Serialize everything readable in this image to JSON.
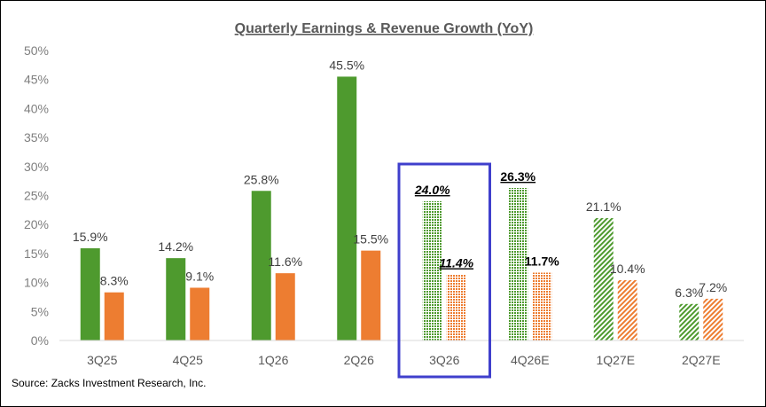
{
  "colors": {
    "earnings": "#4e9a2e",
    "revenue": "#ed7d31",
    "highlight_box": "#3f3fcc",
    "axis": "#d9d9d9"
  },
  "source": "Source: Zacks Investment Research, Inc.",
  "chart_data": {
    "type": "bar",
    "title": "Quarterly Earnings & Revenue Growth (YoY)",
    "categories": [
      "3Q25",
      "4Q25",
      "1Q26",
      "2Q26",
      "3Q26",
      "4Q26E",
      "1Q27E",
      "2Q27E"
    ],
    "series": [
      {
        "values": [
          15.9,
          14.2,
          25.8,
          45.5,
          24.0,
          26.3,
          21.1,
          6.3
        ],
        "labels": [
          "15.9%",
          "14.2%",
          "25.8%",
          "45.5%",
          "24.0%",
          "26.3%",
          "21.1%",
          "6.3%"
        ],
        "fill": [
          "solid",
          "solid",
          "solid",
          "solid",
          "dotted",
          "dotted",
          "hatched",
          "hatched"
        ],
        "label_style": [
          "normal",
          "normal",
          "normal",
          "normal",
          "bold-italic-underline",
          "bold-underline",
          "normal",
          "normal"
        ]
      },
      {
        "values": [
          8.3,
          9.1,
          11.6,
          15.5,
          11.4,
          11.7,
          10.4,
          7.2
        ],
        "labels": [
          "8.3%",
          "9.1%",
          "11.6%",
          "15.5%",
          "11.4%",
          "11.7%",
          "10.4%",
          "7.2%"
        ],
        "fill": [
          "solid",
          "solid",
          "solid",
          "solid",
          "dotted",
          "dotted",
          "hatched",
          "hatched"
        ],
        "label_style": [
          "normal",
          "normal",
          "normal",
          "normal",
          "bold-italic-underline",
          "bold",
          "normal",
          "normal"
        ]
      }
    ],
    "yticks": [
      "0%",
      "5%",
      "10%",
      "15%",
      "20%",
      "25%",
      "30%",
      "35%",
      "40%",
      "45%",
      "50%"
    ],
    "ylim": [
      0,
      50
    ],
    "highlighted_category": "3Q26",
    "grid": false,
    "legend": "none"
  }
}
